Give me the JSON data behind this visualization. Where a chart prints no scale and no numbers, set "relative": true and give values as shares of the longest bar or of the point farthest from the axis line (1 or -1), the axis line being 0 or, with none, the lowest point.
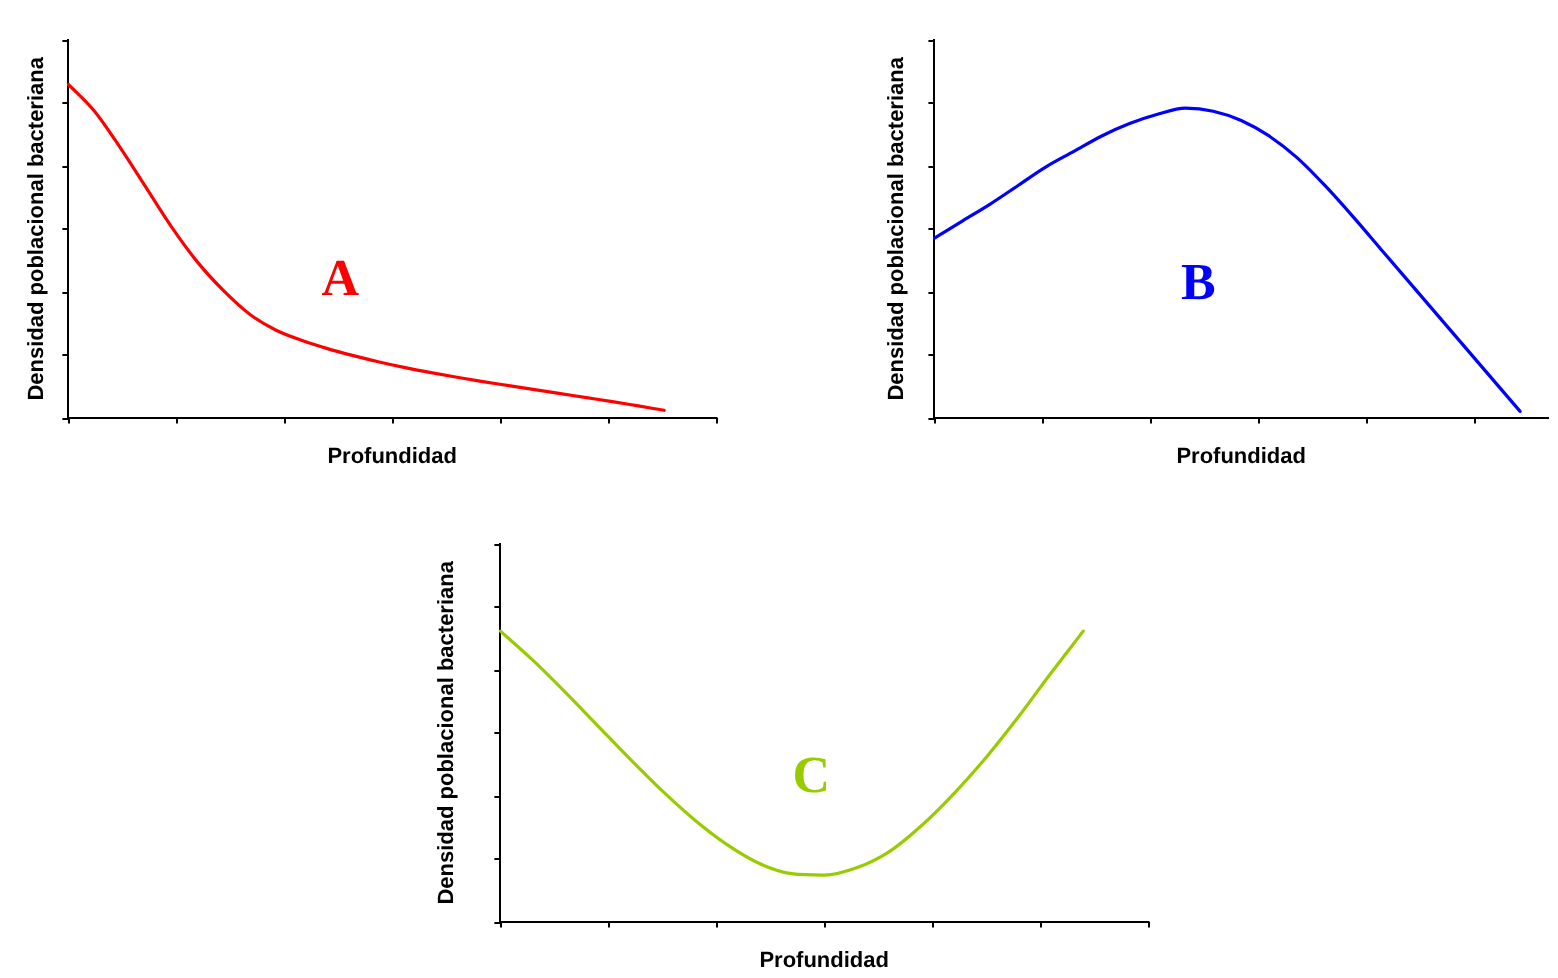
{
  "chart_data": [
    {
      "type": "line",
      "xlabel": "Profundidad",
      "ylabel": "Densidad poblacional bacteriana",
      "annotations": [
        "A"
      ],
      "relative": true,
      "tick_labels": false,
      "grid": false,
      "legend": false,
      "marker": "none",
      "color": "#ff0000",
      "categories": [
        null,
        null,
        null,
        null,
        null,
        null,
        null,
        null,
        null,
        null,
        null,
        null,
        null,
        null,
        null,
        null,
        null,
        null,
        null,
        null,
        null,
        null,
        null,
        null,
        null,
        null
      ],
      "values": [
        1,
        0.92,
        0.81,
        0.69,
        0.57,
        0.465,
        0.38,
        0.31,
        0.263,
        0.232,
        0.207,
        0.186,
        0.167,
        0.15,
        0.135,
        0.121,
        0.108,
        0.096,
        0.084,
        0.072,
        0.06,
        0.048,
        0.035,
        0.022,
        null,
        null
      ]
    },
    {
      "type": "line",
      "xlabel": "Profundidad",
      "ylabel": "Densidad poblacional bacteriana",
      "annotations": [
        "B"
      ],
      "relative": true,
      "tick_labels": false,
      "grid": false,
      "legend": false,
      "marker": "none",
      "color": "#0000ff",
      "categories": [
        null,
        null,
        null,
        null,
        null,
        null,
        null,
        null,
        null,
        null,
        null,
        null,
        null,
        null,
        null,
        null,
        null,
        null,
        null,
        null,
        null,
        null,
        null
      ],
      "values": [
        0.58,
        0.635,
        0.69,
        0.75,
        0.81,
        0.86,
        0.91,
        0.95,
        0.98,
        1,
        0.99,
        0.96,
        0.91,
        0.84,
        0.75,
        0.65,
        0.545,
        0.44,
        0.335,
        0.23,
        0.125,
        0.02,
        null
      ]
    },
    {
      "type": "line",
      "xlabel": "Profundidad",
      "ylabel": "Densidad poblacional bacteriana",
      "annotations": [
        "C"
      ],
      "relative": true,
      "tick_labels": false,
      "grid": false,
      "legend": false,
      "marker": "none",
      "color": "#99cc00",
      "categories": [
        null,
        null,
        null,
        null,
        null,
        null,
        null,
        null,
        null,
        null,
        null,
        null,
        null,
        null,
        null,
        null,
        null,
        null,
        null,
        null,
        null
      ],
      "values": [
        1,
        0.9,
        0.79,
        0.675,
        0.56,
        0.45,
        0.35,
        0.265,
        0.2,
        0.165,
        0.16,
        0.185,
        0.24,
        0.33,
        0.44,
        0.565,
        0.705,
        0.855,
        1,
        null,
        null
      ]
    }
  ]
}
